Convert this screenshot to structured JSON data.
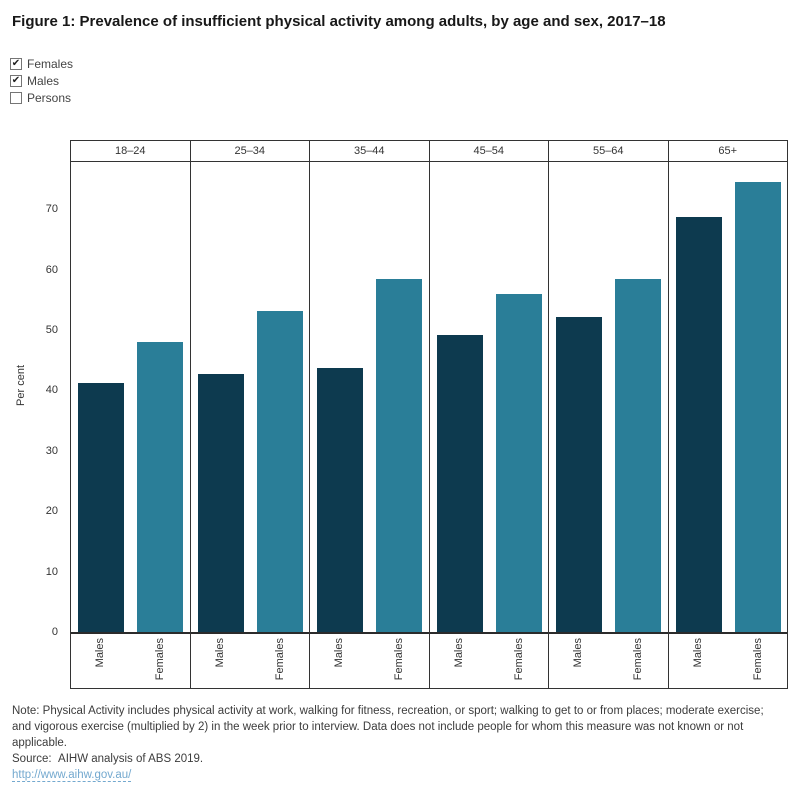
{
  "title": "Figure 1: Prevalence of insufficient physical activity among adults, by age and sex, 2017–18",
  "filters": {
    "check_glyph": "✔",
    "items": [
      {
        "label": "Females",
        "checked": true
      },
      {
        "label": "Males",
        "checked": true
      },
      {
        "label": "Persons",
        "checked": false
      }
    ]
  },
  "chart_data": {
    "type": "bar",
    "title": "Prevalence of insufficient physical activity among adults, by age and sex, 2017–18",
    "categories": [
      "18–24",
      "25–34",
      "35–44",
      "45–54",
      "55–64",
      "65+"
    ],
    "bar_axis_labels": [
      "Males",
      "Females"
    ],
    "series": [
      {
        "name": "Males",
        "color": "#0d3a4f",
        "values": [
          41.3,
          42.7,
          43.7,
          49.2,
          52.2,
          68.7
        ]
      },
      {
        "name": "Females",
        "color": "#2a7e98",
        "values": [
          48.0,
          53.2,
          58.4,
          55.9,
          58.4,
          74.5
        ]
      }
    ],
    "xlabel": "",
    "ylabel": "Per cent",
    "yticks": [
      0,
      10,
      20,
      30,
      40,
      50,
      60,
      70
    ],
    "ylim": [
      0,
      77.8
    ],
    "grid": false,
    "legend_position": "none"
  },
  "colors": {
    "males_bar": "#0d3a4f",
    "females_bar": "#2a7e98",
    "link": "#74a9cf",
    "panel_border": "#333333"
  },
  "footer": {
    "note": "Note: Physical Activity includes physical activity at work, walking for fitness, recreation, or sport; walking to get to or from places; moderate exercise; and vigorous exercise (multiplied by 2) in the week prior to interview. Data does not include people for whom this measure was not known or not applicable.",
    "source": "Source:  AIHW analysis of ABS 2019.",
    "link": "http://www.aihw.gov.au/"
  }
}
